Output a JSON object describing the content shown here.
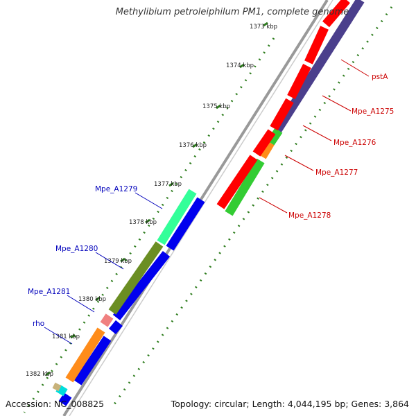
{
  "title": "Methylibium petroleiphilum PM1, complete genome",
  "footer": {
    "accession": "Accession: NC_008825",
    "summary": "Topology: circular; Length: 4,044,195 bp; Genes: 3,864"
  },
  "colors": {
    "backbone": "#888888",
    "tick_dots": "#2e7d1e",
    "forward_label": "#cc0000",
    "reverse_label": "#0000bb",
    "red_gene": "#ff0000",
    "purple_gene": "#4b3f8c",
    "green_gene": "#33cc33",
    "orange_gene": "#ff8c1a",
    "blue_gene": "#0000ee",
    "olive_gene": "#6b8e23",
    "aqua_gene": "#33ff99",
    "pink_gene": "#f08080"
  },
  "ticks": [
    "1373 kbp",
    "1374 kbp",
    "1375 kbp",
    "1376 kbp",
    "1377 kbp",
    "1378 kbp",
    "1379 kbp",
    "1380 kbp",
    "1381 kbp",
    "1382 kbp"
  ],
  "labels": {
    "right": [
      "pstA",
      "Mpe_A1275",
      "Mpe_A1276",
      "Mpe_A1277",
      "Mpe_A1278"
    ],
    "left": [
      "Mpe_A1279",
      "Mpe_A1280",
      "Mpe_A1281",
      "rho"
    ]
  }
}
